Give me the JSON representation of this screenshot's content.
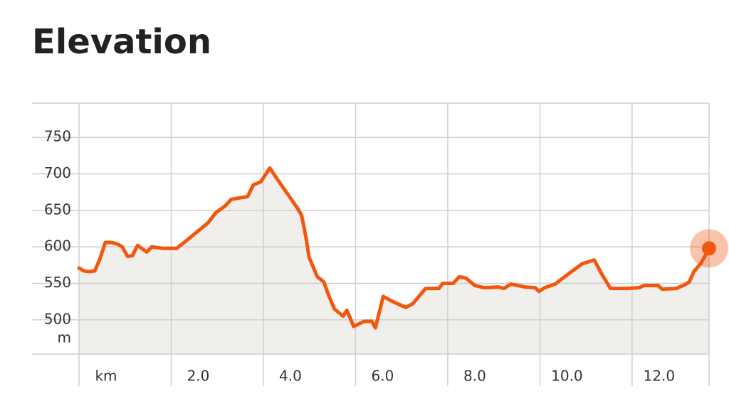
{
  "chart_data": {
    "type": "area",
    "title": "Elevation",
    "y_unit": "m",
    "x": [
      0,
      0.11,
      0.22,
      0.34,
      0.45,
      0.57,
      0.71,
      0.83,
      0.94,
      1.05,
      1.16,
      1.27,
      1.38,
      1.47,
      1.58,
      1.81,
      2.12,
      2.3,
      2.53,
      2.8,
      2.97,
      3.17,
      3.3,
      3.47,
      3.66,
      3.78,
      3.94,
      4.14,
      4.31,
      4.52,
      4.74,
      4.83,
      4.93,
      4.99,
      5.17,
      5.31,
      5.42,
      5.54,
      5.73,
      5.81,
      5.88,
      5.96,
      6.09,
      6.19,
      6.35,
      6.43,
      6.6,
      6.81,
      7.09,
      7.24,
      7.52,
      7.81,
      7.89,
      8.12,
      8.25,
      8.4,
      8.59,
      8.79,
      9.1,
      9.22,
      9.37,
      9.68,
      9.9,
      9.98,
      10.1,
      10.33,
      10.64,
      10.92,
      11.18,
      11.33,
      11.53,
      11.88,
      12.15,
      12.26,
      12.57,
      12.65,
      12.96,
      13.14,
      13.24,
      13.34,
      13.5,
      13.67
    ],
    "values": [
      571,
      567,
      566,
      567,
      583,
      606,
      606,
      604,
      600,
      587,
      588,
      602,
      597,
      593,
      600,
      598,
      598,
      607,
      619,
      633,
      647,
      656,
      665,
      667,
      669,
      685,
      689,
      708,
      692,
      673,
      653,
      643,
      611,
      586,
      559,
      552,
      533,
      515,
      505,
      513,
      503,
      491,
      495,
      498,
      498,
      489,
      532,
      525,
      517,
      522,
      543,
      543,
      550,
      550,
      559,
      557,
      547,
      544,
      545,
      543,
      549,
      545,
      544,
      539,
      544,
      549,
      564,
      577,
      582,
      564,
      543,
      543,
      544,
      547,
      547,
      542,
      543,
      548,
      552,
      566,
      578,
      598
    ],
    "color": "#f2570d",
    "fill_color": "#f1efec",
    "xlim": [
      0,
      13.67
    ],
    "xticks": [
      {
        "value": 0,
        "label": "km"
      },
      {
        "value": 2,
        "label": "2.0"
      },
      {
        "value": 4,
        "label": "4.0"
      },
      {
        "value": 6,
        "label": "6.0"
      },
      {
        "value": 8,
        "label": "8.0"
      },
      {
        "value": 10,
        "label": "10.0"
      },
      {
        "value": 12,
        "label": "12.0"
      }
    ],
    "ylim": [
      453,
      797
    ],
    "yticks": [
      500,
      550,
      600,
      650,
      700,
      750
    ],
    "grid": true
  }
}
